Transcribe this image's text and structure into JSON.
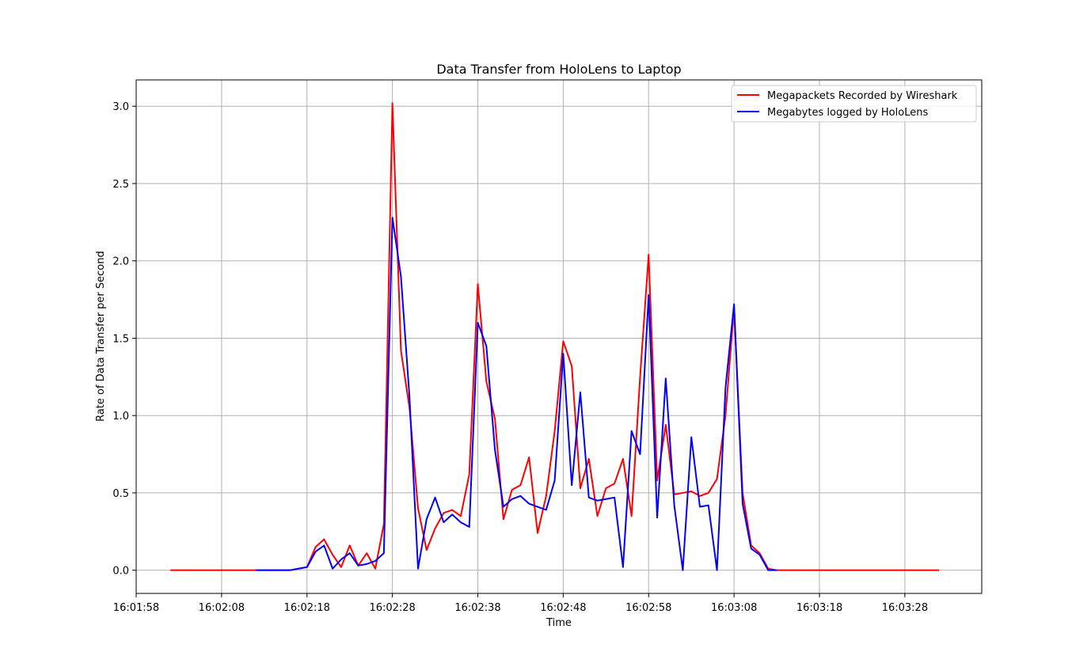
{
  "chart_data": {
    "type": "line",
    "title": "Data Transfer from HoloLens to Laptop",
    "xlabel": "Time",
    "ylabel": "Rate of Data Transfer per Second",
    "x_unit": "seconds after 16:01:58",
    "xlim": [
      0,
      99
    ],
    "ylim": [
      -0.15,
      3.17
    ],
    "x_ticks": [
      0,
      10,
      20,
      30,
      40,
      50,
      60,
      70,
      80,
      90
    ],
    "x_tick_labels": [
      "16:01:58",
      "16:02:08",
      "16:02:18",
      "16:02:28",
      "16:02:38",
      "16:02:48",
      "16:02:58",
      "16:03:08",
      "16:03:18",
      "16:03:28"
    ],
    "y_ticks": [
      0.0,
      0.5,
      1.0,
      1.5,
      2.0,
      2.5,
      3.0
    ],
    "y_tick_labels": [
      "0.0",
      "0.5",
      "1.0",
      "1.5",
      "2.0",
      "2.5",
      "3.0"
    ],
    "grid": true,
    "legend_position": "top-right",
    "series": [
      {
        "name": "Megapackets Recorded by Wireshark",
        "color": "#ff0000",
        "x": [
          4,
          10,
          14,
          18,
          20,
          21,
          22,
          23,
          24,
          25,
          26,
          27,
          28,
          29,
          30,
          31,
          32,
          33,
          34,
          35,
          36,
          37,
          38,
          39,
          40,
          41,
          42,
          43,
          44,
          45,
          46,
          47,
          48,
          49,
          50,
          51,
          52,
          53,
          54,
          55,
          56,
          57,
          58,
          59,
          60,
          61,
          62,
          63,
          64,
          65,
          66,
          67,
          68,
          69,
          70,
          71,
          72,
          73,
          74,
          75,
          80,
          85,
          90,
          94
        ],
        "y": [
          0.0,
          0.0,
          0.0,
          0.0,
          0.02,
          0.15,
          0.2,
          0.1,
          0.02,
          0.16,
          0.03,
          0.11,
          0.01,
          0.3,
          3.02,
          1.42,
          1.05,
          0.4,
          0.13,
          0.27,
          0.37,
          0.39,
          0.35,
          0.62,
          1.85,
          1.22,
          0.98,
          0.33,
          0.52,
          0.55,
          0.73,
          0.24,
          0.48,
          0.9,
          1.48,
          1.32,
          0.53,
          0.72,
          0.35,
          0.53,
          0.56,
          0.72,
          0.35,
          1.25,
          2.04,
          0.58,
          0.94,
          0.49,
          0.5,
          0.51,
          0.48,
          0.5,
          0.59,
          1.0,
          1.7,
          0.5,
          0.16,
          0.11,
          0.01,
          0.0,
          0.0,
          0.0,
          0.0,
          0.0
        ]
      },
      {
        "name": "Megabytes logged by HoloLens",
        "color": "#0000ff",
        "x": [
          14,
          18,
          20,
          21,
          22,
          23,
          24,
          25,
          26,
          27,
          28,
          29,
          30,
          31,
          32,
          33,
          34,
          35,
          36,
          37,
          38,
          39,
          40,
          41,
          42,
          43,
          44,
          45,
          46,
          47,
          48,
          49,
          50,
          51,
          52,
          53,
          54,
          55,
          56,
          57,
          58,
          59,
          60,
          61,
          62,
          63,
          64,
          65,
          66,
          67,
          68,
          69,
          70,
          71,
          72,
          73,
          74,
          75
        ],
        "y": [
          0.0,
          0.0,
          0.02,
          0.12,
          0.16,
          0.01,
          0.07,
          0.11,
          0.03,
          0.04,
          0.06,
          0.11,
          2.28,
          1.9,
          1.12,
          0.01,
          0.33,
          0.47,
          0.31,
          0.36,
          0.31,
          0.28,
          1.6,
          1.45,
          0.78,
          0.41,
          0.46,
          0.48,
          0.43,
          0.41,
          0.39,
          0.58,
          1.4,
          0.55,
          1.15,
          0.47,
          0.45,
          0.46,
          0.47,
          0.02,
          0.9,
          0.75,
          1.78,
          0.34,
          1.24,
          0.42,
          0.0,
          0.86,
          0.41,
          0.42,
          0.0,
          1.18,
          1.72,
          0.43,
          0.14,
          0.1,
          0.0,
          0.0
        ]
      }
    ]
  }
}
